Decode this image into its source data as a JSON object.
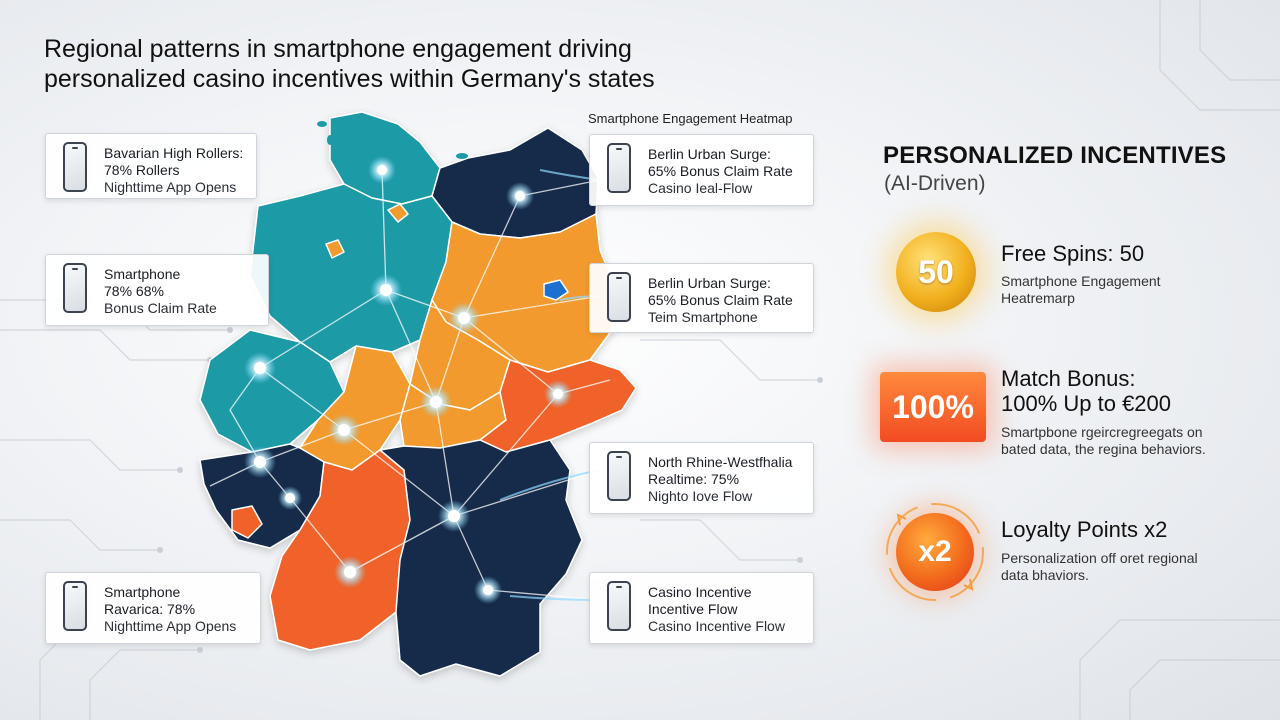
{
  "title": {
    "line1": "Regional patterns in smartphone engagement driving",
    "line2": "personalized casino incentives within Germany's states"
  },
  "map": {
    "label": "Smartphone Engagement Heatmap",
    "colors": {
      "teal": "#1e9aa6",
      "orange": "#f39a2e",
      "deep_orange": "#f0622c",
      "navy": "#14294a"
    }
  },
  "cards": [
    {
      "l1": "Bavarian High Rollers:",
      "l2": "78% Rollers",
      "l3": "Nighttime App Opens",
      "icon": "smartphone-icon"
    },
    {
      "l1": "Smartphone",
      "l2": "78% 68%",
      "l3": "Bonus Claim Rate",
      "icon": "smartphone-icon"
    },
    {
      "l1": "Smartphone",
      "l2": "Ravarica: 78%",
      "l3": "Nighttime App Opens",
      "icon": "smartphone-icon"
    },
    {
      "l1": "Berlin Urban Surge:",
      "l2": "65% Bonus Claim Rate",
      "l3": "Casino Ieal-Flow",
      "icon": "smartphone-icon"
    },
    {
      "l1": "Berlin Urban Surge:",
      "l2": "65% Bonus Claim Rate",
      "l3": "Teim Smartphone",
      "icon": "smartphone-icon"
    },
    {
      "l1": "North Rhine-Westfhalia",
      "l2": "Realtime: 75%",
      "l3": "Nighto Iove Flow",
      "icon": "smartphone-icon"
    },
    {
      "l1": "Casino Incentive",
      "l2": "Incentive Flow",
      "l3": "Casino Incentive Flow",
      "icon": "smartphone-icon"
    }
  ],
  "incentives": {
    "title": "PERSONALIZED INCENTIVES",
    "subtitle": "(AI-Driven)",
    "items": [
      {
        "badge": "50",
        "head1": "Free Spins: 50",
        "head2": "",
        "desc1": "Smartphone Engagement",
        "desc2": "Heatremarp"
      },
      {
        "badge": "100%",
        "head1": "Match Bonus:",
        "head2": "100% Up to €200",
        "desc1": "Smartpbone rgeircregreegats on",
        "desc2": "bated data, the regina behaviors."
      },
      {
        "badge": "x2",
        "head1": "Loyalty Points x2",
        "head2": "",
        "desc1": "Personalization off oret regional",
        "desc2": "data bhaviors."
      }
    ]
  }
}
